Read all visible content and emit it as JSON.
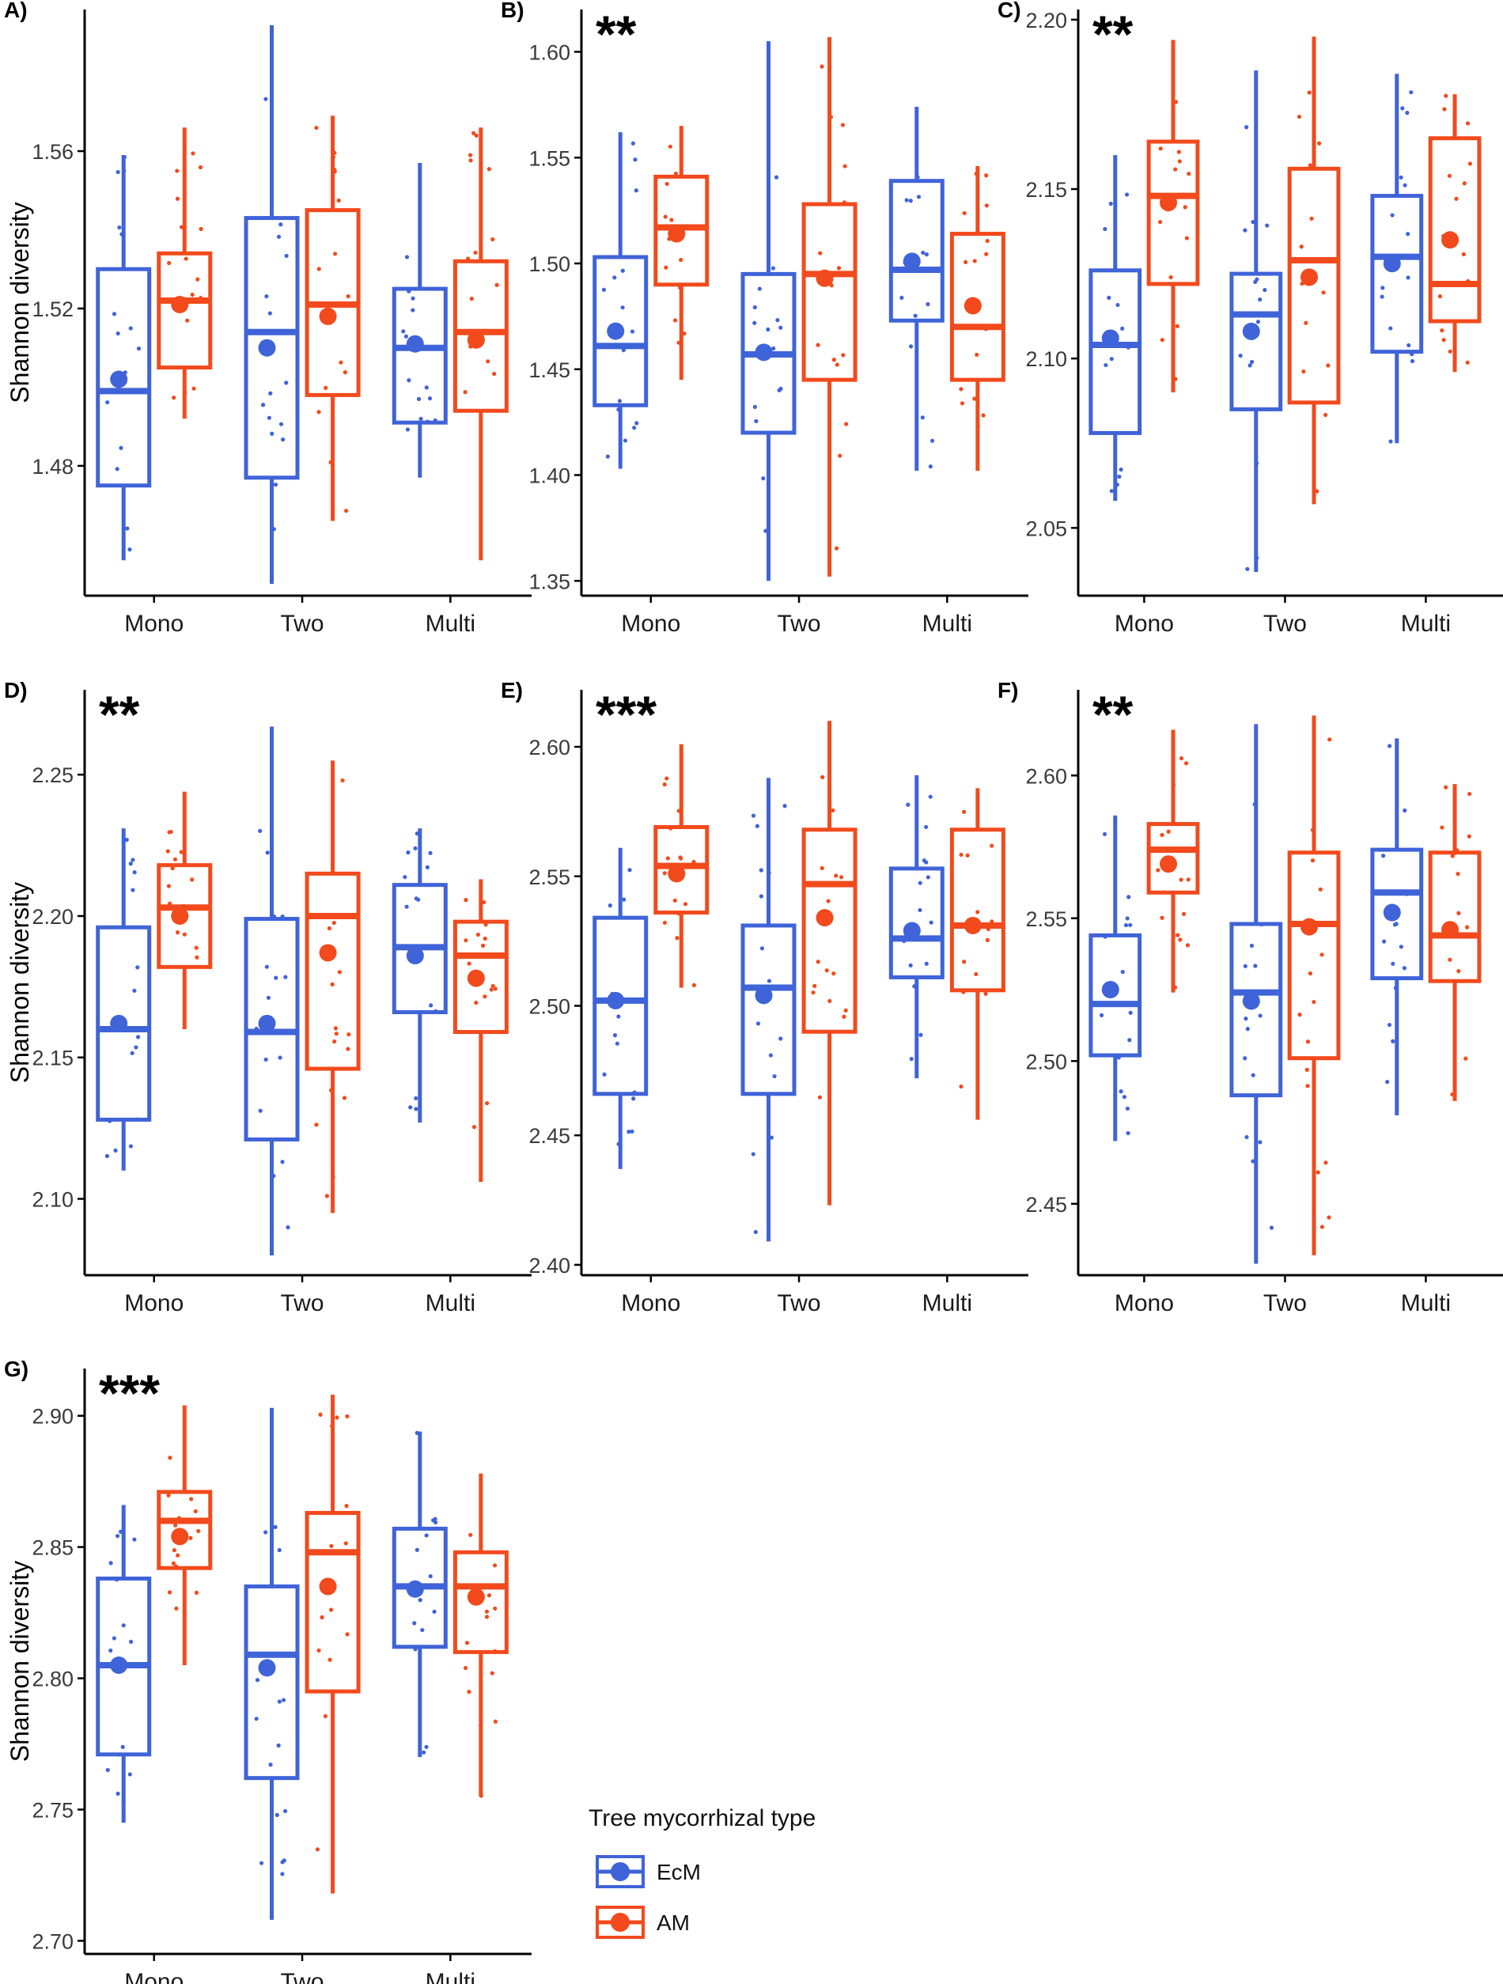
{
  "legend": {
    "title": "Tree mycorrhizal type",
    "entries": [
      {
        "key": "EcM",
        "label": "EcM",
        "color": "#3f63d8"
      },
      {
        "key": "AM",
        "label": "AM",
        "color": "#f24a1c"
      }
    ]
  },
  "chart_data": [
    {
      "type": "boxplot",
      "panel": "A)",
      "significance": "",
      "ylabel": "Shannon diversity",
      "categories": [
        "Mono",
        "Two",
        "Multi"
      ],
      "ylim": [
        1.447,
        1.596
      ],
      "yticks": [
        1.48,
        1.52,
        1.56
      ],
      "series": [
        {
          "name": "EcM",
          "boxes": [
            {
              "q1": 1.475,
              "median": 1.499,
              "q3": 1.53,
              "whisker_low": 1.456,
              "whisker_high": 1.559,
              "mean": 1.502
            },
            {
              "q1": 1.477,
              "median": 1.514,
              "q3": 1.543,
              "whisker_low": 1.45,
              "whisker_high": 1.592,
              "mean": 1.51
            },
            {
              "q1": 1.491,
              "median": 1.51,
              "q3": 1.525,
              "whisker_low": 1.477,
              "whisker_high": 1.557,
              "mean": 1.511
            }
          ]
        },
        {
          "name": "AM",
          "boxes": [
            {
              "q1": 1.505,
              "median": 1.522,
              "q3": 1.534,
              "whisker_low": 1.492,
              "whisker_high": 1.566,
              "mean": 1.521
            },
            {
              "q1": 1.498,
              "median": 1.521,
              "q3": 1.545,
              "whisker_low": 1.466,
              "whisker_high": 1.569,
              "mean": 1.518
            },
            {
              "q1": 1.494,
              "median": 1.514,
              "q3": 1.532,
              "whisker_low": 1.456,
              "whisker_high": 1.566,
              "mean": 1.512
            }
          ]
        }
      ]
    },
    {
      "type": "boxplot",
      "panel": "B)",
      "significance": "**",
      "ylabel": "",
      "categories": [
        "Mono",
        "Two",
        "Multi"
      ],
      "ylim": [
        1.343,
        1.62
      ],
      "yticks": [
        1.35,
        1.4,
        1.45,
        1.5,
        1.55,
        1.6
      ],
      "series": [
        {
          "name": "EcM",
          "boxes": [
            {
              "q1": 1.433,
              "median": 1.461,
              "q3": 1.503,
              "whisker_low": 1.403,
              "whisker_high": 1.562,
              "mean": 1.468
            },
            {
              "q1": 1.42,
              "median": 1.457,
              "q3": 1.495,
              "whisker_low": 1.35,
              "whisker_high": 1.605,
              "mean": 1.458
            },
            {
              "q1": 1.473,
              "median": 1.497,
              "q3": 1.539,
              "whisker_low": 1.402,
              "whisker_high": 1.574,
              "mean": 1.501
            }
          ]
        },
        {
          "name": "AM",
          "boxes": [
            {
              "q1": 1.49,
              "median": 1.517,
              "q3": 1.541,
              "whisker_low": 1.445,
              "whisker_high": 1.565,
              "mean": 1.514
            },
            {
              "q1": 1.445,
              "median": 1.495,
              "q3": 1.528,
              "whisker_low": 1.352,
              "whisker_high": 1.607,
              "mean": 1.493
            },
            {
              "q1": 1.445,
              "median": 1.47,
              "q3": 1.514,
              "whisker_low": 1.402,
              "whisker_high": 1.546,
              "mean": 1.48
            }
          ]
        }
      ]
    },
    {
      "type": "boxplot",
      "panel": "C)",
      "significance": "**",
      "ylabel": "",
      "categories": [
        "Mono",
        "Two",
        "Multi"
      ],
      "ylim": [
        2.03,
        2.203
      ],
      "yticks": [
        2.05,
        2.1,
        2.15,
        2.2
      ],
      "series": [
        {
          "name": "EcM",
          "boxes": [
            {
              "q1": 2.078,
              "median": 2.104,
              "q3": 2.126,
              "whisker_low": 2.058,
              "whisker_high": 2.16,
              "mean": 2.106
            },
            {
              "q1": 2.085,
              "median": 2.113,
              "q3": 2.125,
              "whisker_low": 2.037,
              "whisker_high": 2.185,
              "mean": 2.108
            },
            {
              "q1": 2.102,
              "median": 2.13,
              "q3": 2.148,
              "whisker_low": 2.075,
              "whisker_high": 2.184,
              "mean": 2.128
            }
          ]
        },
        {
          "name": "AM",
          "boxes": [
            {
              "q1": 2.122,
              "median": 2.148,
              "q3": 2.164,
              "whisker_low": 2.09,
              "whisker_high": 2.194,
              "mean": 2.146
            },
            {
              "q1": 2.087,
              "median": 2.129,
              "q3": 2.156,
              "whisker_low": 2.057,
              "whisker_high": 2.195,
              "mean": 2.124
            },
            {
              "q1": 2.111,
              "median": 2.122,
              "q3": 2.165,
              "whisker_low": 2.096,
              "whisker_high": 2.178,
              "mean": 2.135
            }
          ]
        }
      ]
    },
    {
      "type": "boxplot",
      "panel": "D)",
      "significance": "**",
      "ylabel": "Shannon diversity",
      "categories": [
        "Mono",
        "Two",
        "Multi"
      ],
      "ylim": [
        2.073,
        2.28
      ],
      "yticks": [
        2.1,
        2.15,
        2.2,
        2.25
      ],
      "series": [
        {
          "name": "EcM",
          "boxes": [
            {
              "q1": 2.128,
              "median": 2.16,
              "q3": 2.196,
              "whisker_low": 2.11,
              "whisker_high": 2.231,
              "mean": 2.162
            },
            {
              "q1": 2.121,
              "median": 2.159,
              "q3": 2.199,
              "whisker_low": 2.08,
              "whisker_high": 2.267,
              "mean": 2.162
            },
            {
              "q1": 2.166,
              "median": 2.189,
              "q3": 2.211,
              "whisker_low": 2.127,
              "whisker_high": 2.231,
              "mean": 2.186
            }
          ]
        },
        {
          "name": "AM",
          "boxes": [
            {
              "q1": 2.182,
              "median": 2.203,
              "q3": 2.218,
              "whisker_low": 2.16,
              "whisker_high": 2.244,
              "mean": 2.2
            },
            {
              "q1": 2.146,
              "median": 2.2,
              "q3": 2.215,
              "whisker_low": 2.095,
              "whisker_high": 2.255,
              "mean": 2.187
            },
            {
              "q1": 2.159,
              "median": 2.186,
              "q3": 2.198,
              "whisker_low": 2.106,
              "whisker_high": 2.213,
              "mean": 2.178
            }
          ]
        }
      ]
    },
    {
      "type": "boxplot",
      "panel": "E)",
      "significance": "***",
      "ylabel": "",
      "categories": [
        "Mono",
        "Two",
        "Multi"
      ],
      "ylim": [
        2.396,
        2.622
      ],
      "yticks": [
        2.4,
        2.45,
        2.5,
        2.55,
        2.6
      ],
      "series": [
        {
          "name": "EcM",
          "boxes": [
            {
              "q1": 2.466,
              "median": 2.502,
              "q3": 2.534,
              "whisker_low": 2.437,
              "whisker_high": 2.561,
              "mean": 2.502
            },
            {
              "q1": 2.466,
              "median": 2.507,
              "q3": 2.531,
              "whisker_low": 2.409,
              "whisker_high": 2.588,
              "mean": 2.504
            },
            {
              "q1": 2.511,
              "median": 2.526,
              "q3": 2.553,
              "whisker_low": 2.472,
              "whisker_high": 2.589,
              "mean": 2.529
            }
          ]
        },
        {
          "name": "AM",
          "boxes": [
            {
              "q1": 2.536,
              "median": 2.554,
              "q3": 2.569,
              "whisker_low": 2.507,
              "whisker_high": 2.601,
              "mean": 2.551
            },
            {
              "q1": 2.49,
              "median": 2.547,
              "q3": 2.568,
              "whisker_low": 2.423,
              "whisker_high": 2.61,
              "mean": 2.534
            },
            {
              "q1": 2.506,
              "median": 2.531,
              "q3": 2.568,
              "whisker_low": 2.456,
              "whisker_high": 2.584,
              "mean": 2.531
            }
          ]
        }
      ]
    },
    {
      "type": "boxplot",
      "panel": "F)",
      "significance": "**",
      "ylabel": "",
      "categories": [
        "Mono",
        "Two",
        "Multi"
      ],
      "ylim": [
        2.425,
        2.63
      ],
      "yticks": [
        2.45,
        2.5,
        2.55,
        2.6
      ],
      "series": [
        {
          "name": "EcM",
          "boxes": [
            {
              "q1": 2.502,
              "median": 2.52,
              "q3": 2.544,
              "whisker_low": 2.472,
              "whisker_high": 2.586,
              "mean": 2.525
            },
            {
              "q1": 2.488,
              "median": 2.524,
              "q3": 2.548,
              "whisker_low": 2.429,
              "whisker_high": 2.618,
              "mean": 2.521
            },
            {
              "q1": 2.529,
              "median": 2.559,
              "q3": 2.574,
              "whisker_low": 2.481,
              "whisker_high": 2.613,
              "mean": 2.552
            }
          ]
        },
        {
          "name": "AM",
          "boxes": [
            {
              "q1": 2.559,
              "median": 2.574,
              "q3": 2.583,
              "whisker_low": 2.524,
              "whisker_high": 2.616,
              "mean": 2.569
            },
            {
              "q1": 2.501,
              "median": 2.548,
              "q3": 2.573,
              "whisker_low": 2.432,
              "whisker_high": 2.621,
              "mean": 2.547
            },
            {
              "q1": 2.528,
              "median": 2.544,
              "q3": 2.573,
              "whisker_low": 2.486,
              "whisker_high": 2.597,
              "mean": 2.546
            }
          ]
        }
      ]
    },
    {
      "type": "boxplot",
      "panel": "G)",
      "significance": "***",
      "ylabel": "Shannon diversity",
      "categories": [
        "Mono",
        "Two",
        "Multi"
      ],
      "ylim": [
        2.695,
        2.918
      ],
      "yticks": [
        2.7,
        2.75,
        2.8,
        2.85,
        2.9
      ],
      "series": [
        {
          "name": "EcM",
          "boxes": [
            {
              "q1": 2.771,
              "median": 2.805,
              "q3": 2.838,
              "whisker_low": 2.745,
              "whisker_high": 2.866,
              "mean": 2.805
            },
            {
              "q1": 2.762,
              "median": 2.809,
              "q3": 2.835,
              "whisker_low": 2.708,
              "whisker_high": 2.903,
              "mean": 2.804
            },
            {
              "q1": 2.812,
              "median": 2.835,
              "q3": 2.857,
              "whisker_low": 2.77,
              "whisker_high": 2.894,
              "mean": 2.834
            }
          ]
        },
        {
          "name": "AM",
          "boxes": [
            {
              "q1": 2.842,
              "median": 2.86,
              "q3": 2.871,
              "whisker_low": 2.805,
              "whisker_high": 2.904,
              "mean": 2.854
            },
            {
              "q1": 2.795,
              "median": 2.848,
              "q3": 2.863,
              "whisker_low": 2.718,
              "whisker_high": 2.908,
              "mean": 2.835
            },
            {
              "q1": 2.81,
              "median": 2.835,
              "q3": 2.848,
              "whisker_low": 2.755,
              "whisker_high": 2.878,
              "mean": 2.831
            }
          ]
        }
      ]
    }
  ]
}
